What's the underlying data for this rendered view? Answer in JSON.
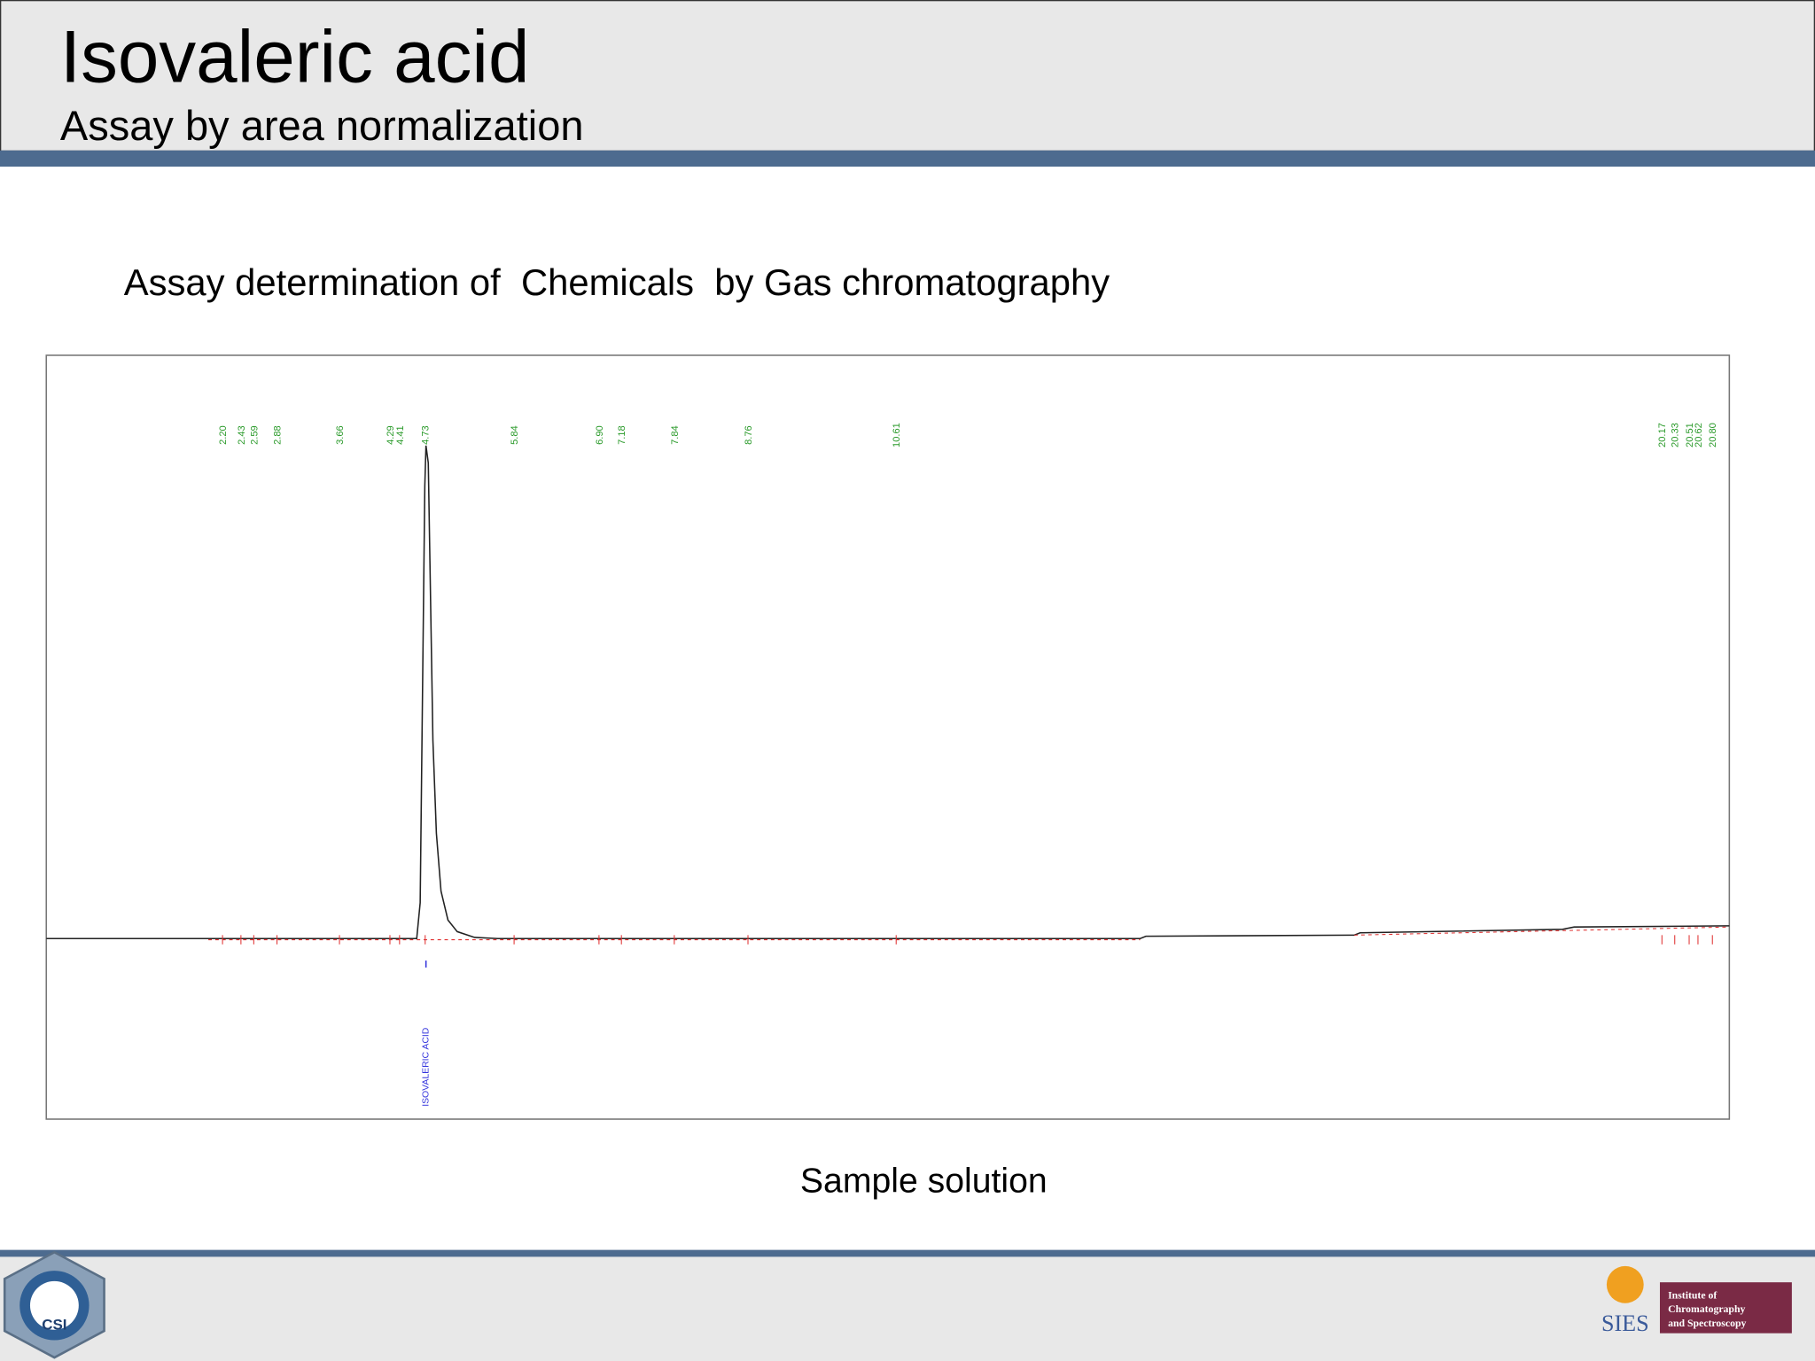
{
  "header": {
    "title": "Isovaleric acid",
    "subtitle": "Assay by area normalization"
  },
  "heading": "Assay determination of  Chemicals  by Gas chromatography",
  "chromatogram": {
    "peak_labels": [
      "2.20",
      "2.43",
      "2.59",
      "2.88",
      "3.66",
      "4.29",
      "4.41",
      "4.73",
      "5.84",
      "6.90",
      "7.18",
      "7.84",
      "8.76",
      "10.61",
      "20.17",
      "20.33",
      "20.51",
      "20.62",
      "20.80"
    ],
    "peak_name": "ISOVALERIC ACID"
  },
  "caption": "Sample solution",
  "footer": {
    "left_logo": "CSI",
    "right_logo": {
      "mark": "SIES",
      "text": [
        "Institute of",
        "Chromatography",
        "and Spectroscopy"
      ]
    }
  }
}
